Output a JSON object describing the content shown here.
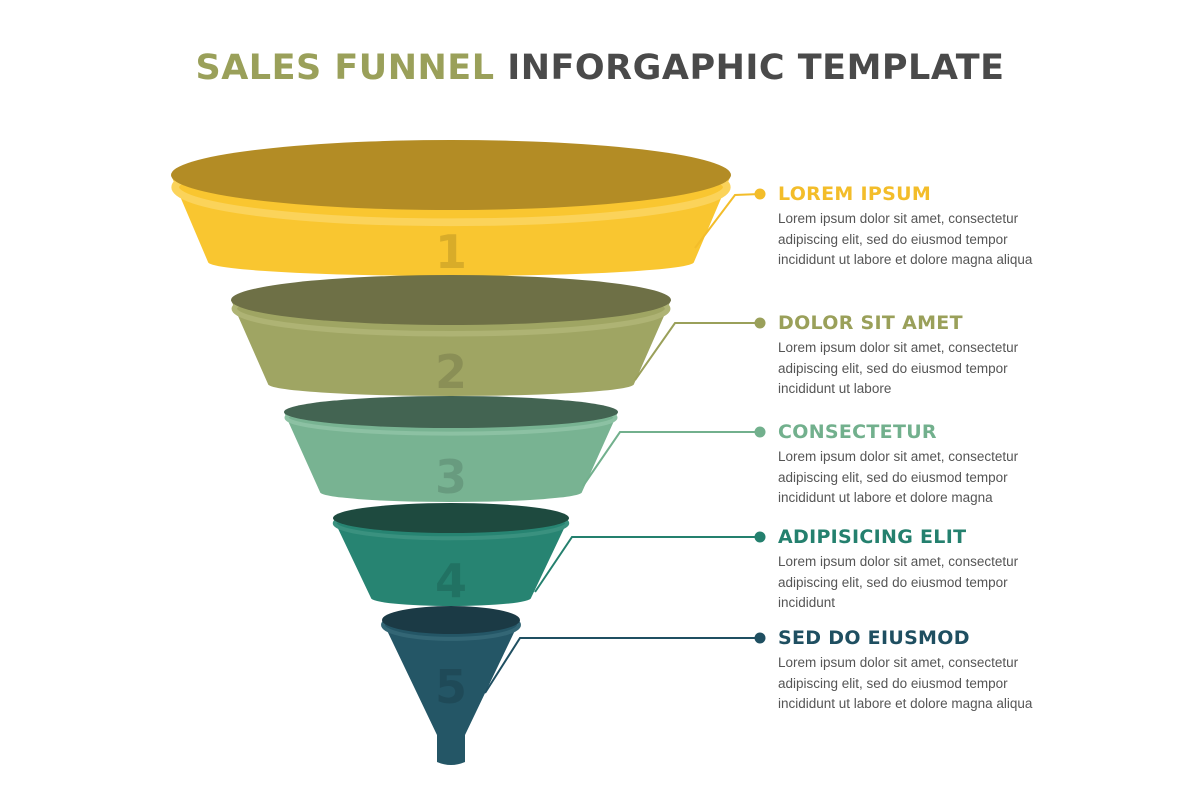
{
  "title": {
    "highlight": "SALES FUNNEL",
    "rest": "INFORGAPHIC TEMPLATE"
  },
  "stages": [
    {
      "number": "1",
      "heading": "LOREM IPSUM",
      "text": [
        "Lorem ipsum dolor sit amet, consectetur",
        "adipiscing elit, sed do eiusmod tempor",
        "incididunt ut labore et dolore magna aliqua"
      ],
      "color": "#f9c630",
      "top_color": "#b38c25",
      "band_color": "#fbd35a",
      "heading_color": "#f3bd2a"
    },
    {
      "number": "2",
      "heading": "DOLOR SIT AMET",
      "text": [
        "Lorem ipsum dolor sit amet, consectetur",
        "adipiscing elit, sed do eiusmod tempor",
        "incididunt ut labore"
      ],
      "color": "#9fa563",
      "top_color": "#6e7046",
      "band_color": "#aeb374",
      "heading_color": "#9aa05a"
    },
    {
      "number": "3",
      "heading": "CONSECTETUR",
      "text": [
        "Lorem ipsum dolor sit amet, consectetur",
        "adipiscing elit, sed do eiusmod tempor",
        "incididunt ut labore et dolore magna"
      ],
      "color": "#78b392",
      "top_color": "#436452",
      "band_color": "#8cc1a3",
      "heading_color": "#72b08d"
    },
    {
      "number": "4",
      "heading": "ADIPISICING ELIT",
      "text": [
        "Lorem ipsum dolor sit amet, consectetur",
        "adipiscing elit, sed do eiusmod tempor",
        "incididunt"
      ],
      "color": "#278472",
      "top_color": "#1e4a3f",
      "band_color": "#3a917f",
      "heading_color": "#24806e"
    },
    {
      "number": "5",
      "heading": "SED DO EIUSMOD",
      "text": [
        "Lorem ipsum dolor sit amet, consectetur",
        "adipiscing elit, sed do eiusmod tempor",
        "incididunt ut labore et dolore magna aliqua"
      ],
      "color": "#245666",
      "top_color": "#1b3a45",
      "band_color": "#336675",
      "heading_color": "#1f4f61"
    }
  ]
}
